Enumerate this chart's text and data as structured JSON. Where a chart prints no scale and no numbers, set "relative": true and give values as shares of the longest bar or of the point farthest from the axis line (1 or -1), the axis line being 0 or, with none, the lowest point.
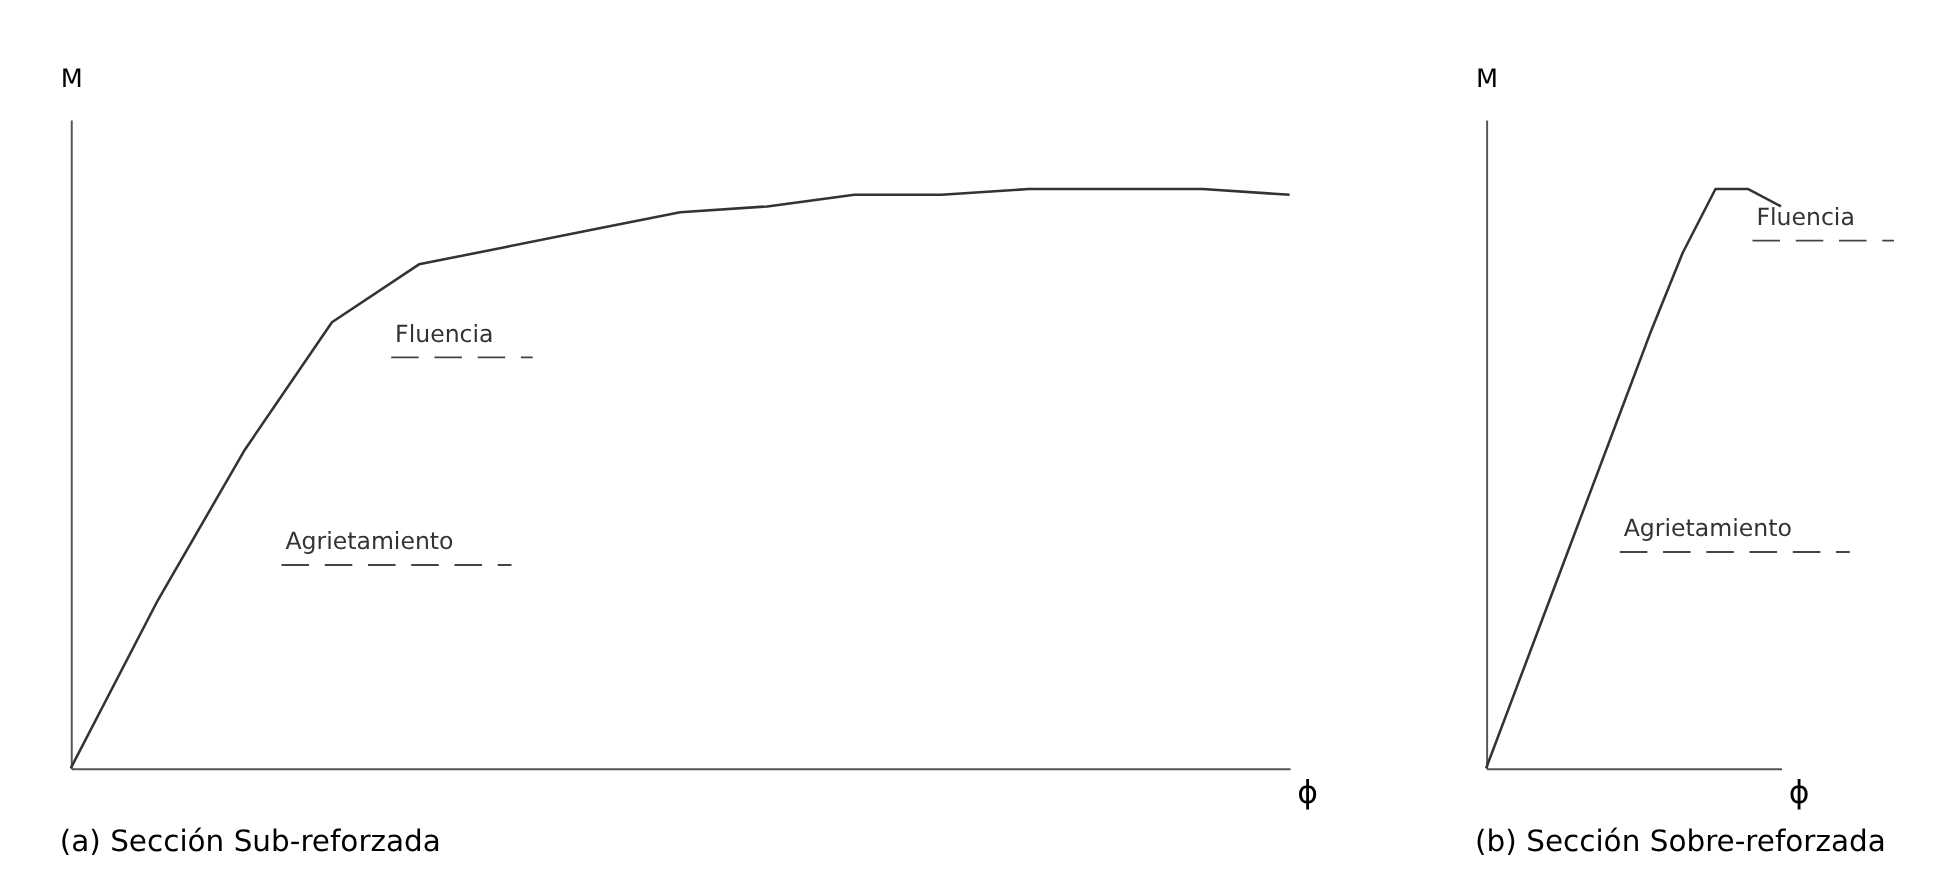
{
  "chart_data": [
    {
      "type": "line",
      "title": "(a)  Sección Sub-reforzada",
      "xlabel": "ϕ",
      "ylabel": "M",
      "relative": true,
      "grid": false,
      "categories": [
        null,
        null,
        null,
        null,
        null,
        null,
        null,
        null,
        null,
        null,
        null,
        null,
        null,
        null,
        null
      ],
      "series": [
        {
          "color": "#333333",
          "values": [
            0,
            0.29,
            0.55,
            0.77,
            0.87,
            0.9,
            0.93,
            0.96,
            0.97,
            0.99,
            0.99,
            1.0,
            1.0,
            1.0,
            0.99
          ]
        }
      ],
      "annotations": [
        "Fluencia",
        "Agrietamiento"
      ]
    },
    {
      "type": "line",
      "title": "(b) Sección Sobre-reforzada",
      "xlabel": "ϕ",
      "ylabel": "M",
      "relative": true,
      "grid": false,
      "categories": [
        null,
        null,
        null,
        null,
        null,
        null,
        null,
        null,
        null,
        null
      ],
      "series": [
        {
          "color": "#333333",
          "values": [
            0,
            0.15,
            0.3,
            0.45,
            0.6,
            0.75,
            0.89,
            1.0,
            1.0,
            0.97
          ]
        }
      ],
      "annotations": [
        "Fluencia",
        "Agrietamiento"
      ]
    }
  ]
}
